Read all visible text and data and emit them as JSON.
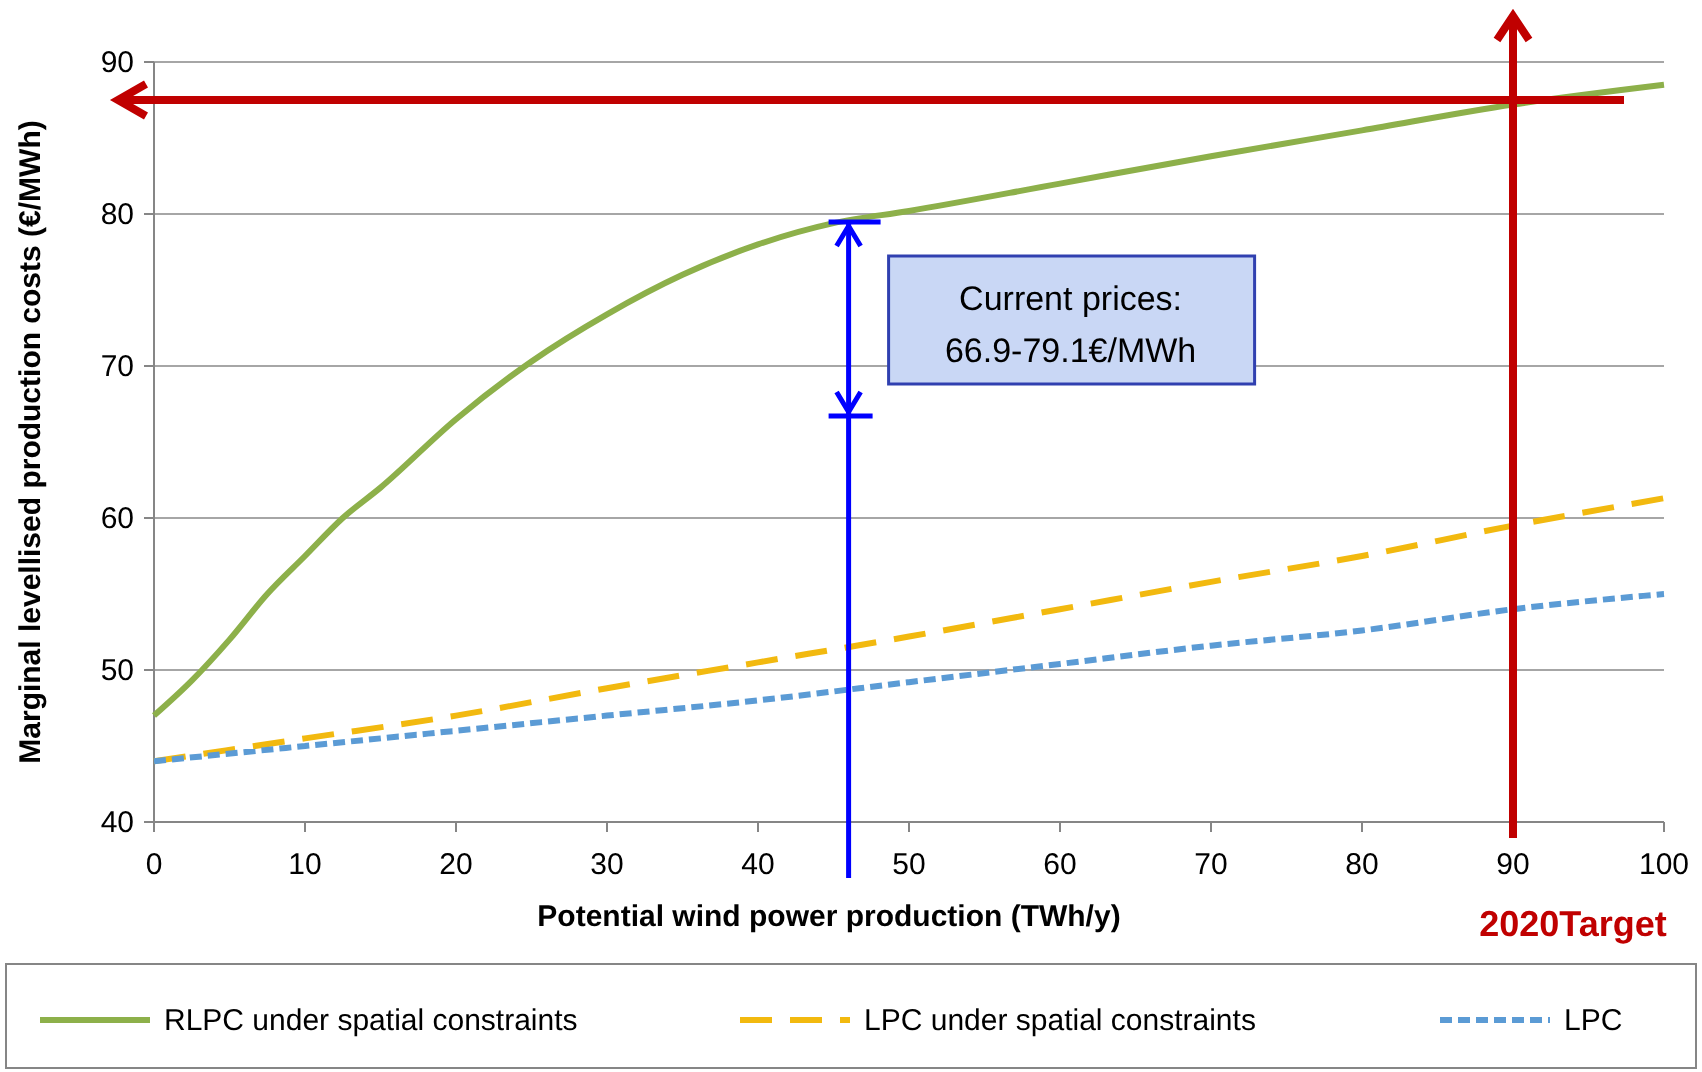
{
  "chart_data": {
    "type": "line",
    "xlabel": "Potential wind power production (TWh/y)",
    "ylabel": "Marginal levellised production costs (€/MWh)",
    "xlim": [
      0,
      100
    ],
    "xticks": [
      0,
      10,
      20,
      30,
      40,
      50,
      60,
      70,
      80,
      90,
      100
    ],
    "ylim": [
      40,
      90
    ],
    "yticks": [
      40,
      50,
      60,
      70,
      80,
      90
    ],
    "grid": "y",
    "legend": "bottom",
    "marker": "none",
    "series": [
      {
        "name": "RLPC under spatial constraints",
        "color": "#8db04a",
        "line_style": "solid",
        "x": [
          0,
          2.5,
          5,
          7.5,
          10,
          12.5,
          15,
          20,
          25,
          30,
          35,
          40,
          45,
          50,
          60,
          70,
          80,
          90,
          100
        ],
        "values": [
          47,
          49.3,
          52,
          55,
          57.5,
          60,
          62,
          66.5,
          70.3,
          73.4,
          76,
          78,
          79.4,
          80.2,
          82,
          83.8,
          85.5,
          87.2,
          88.5
        ]
      },
      {
        "name": "LPC under spatial constraints",
        "color": "#f2b90f",
        "line_style": "dashed",
        "x": [
          0,
          10,
          20,
          30,
          40,
          50,
          60,
          70,
          80,
          90,
          100
        ],
        "values": [
          44,
          45.5,
          47,
          48.8,
          50.5,
          52.2,
          54,
          55.8,
          57.5,
          59.5,
          61.3
        ]
      },
      {
        "name": "LPC",
        "color": "#5b9bd5",
        "line_style": "dotted",
        "x": [
          0,
          10,
          20,
          30,
          40,
          50,
          60,
          70,
          80,
          90,
          100
        ],
        "values": [
          44,
          45,
          46,
          47,
          48,
          49.2,
          50.4,
          51.6,
          52.6,
          54,
          55
        ]
      }
    ],
    "ref_lines": [
      {
        "axis": "x",
        "value": 90,
        "label": "2020Target",
        "color": "#c00000"
      },
      {
        "axis": "x",
        "value": 46,
        "color": "#0000ff"
      },
      {
        "axis": "y",
        "value": 87.5,
        "color": "#c00000"
      }
    ],
    "annotations": [
      "Current prices:\n66.9-79.1€/MWh"
    ]
  }
}
